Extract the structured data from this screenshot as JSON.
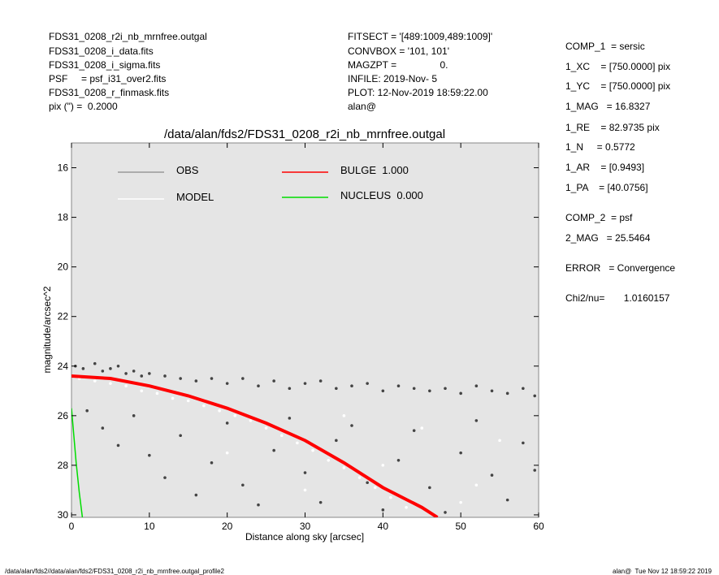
{
  "header": {
    "left": [
      "FDS31_0208_r2i_nb_mrnfree.outgal",
      "FDS31_0208_i_data.fits",
      "FDS31_0208_i_sigma.fits",
      "PSF     = psf_i31_over2.fits",
      "FDS31_0208_r_finmask.fits",
      "pix (\") =  0.2000"
    ],
    "middle": [
      "FITSECT = '[489:1009,489:1009]'",
      "CONVBOX = '101, 101'",
      "MAGZPT =                0.",
      "INFILE: 2019-Nov- 5",
      "PLOT: 12-Nov-2019 18:59:22.00",
      "alan@"
    ],
    "right": [
      "COMP_1  = sersic",
      "1_XC    = [750.0000] pix",
      "1_YC    = [750.0000] pix",
      "1_MAG   = 16.8327",
      "1_RE    = 82.9735 pix",
      "1_N     = 0.5772",
      "1_AR    = [0.9493]",
      "1_PA    = [40.0756]",
      "COMP_2  = psf",
      "2_MAG   = 25.5464",
      "ERROR   = Convergence",
      "Chi2/nu=       1.0160157"
    ]
  },
  "chart_data": {
    "type": "scatter",
    "title": "/data/alan/fds2/FDS31_0208_r2i_nb_mrnfree.outgal",
    "x_label": "Distance along sky [arcsec]",
    "y_label": "magnitude/arcsec^2",
    "xlim": [
      0,
      60
    ],
    "ylim": [
      30.1,
      15.0
    ],
    "xticks": [
      0,
      10,
      20,
      30,
      40,
      50,
      60
    ],
    "yticks": [
      16,
      18,
      20,
      22,
      24,
      26,
      28,
      30
    ],
    "series": [
      {
        "name": "OBS",
        "mode": "points",
        "color": "#444444",
        "legend_color": "#999999",
        "x": [
          0.5,
          1.5,
          3,
          4,
          5,
          6,
          7,
          8,
          9,
          10,
          12,
          14,
          16,
          18,
          20,
          22,
          24,
          26,
          28,
          30,
          32,
          34,
          36,
          38,
          40,
          42,
          44,
          46,
          48,
          50,
          52,
          54,
          56,
          58,
          59.5,
          2,
          4,
          6,
          8,
          10,
          12,
          14,
          16,
          18,
          20,
          22,
          24,
          26,
          28,
          30,
          32,
          34,
          36,
          38,
          40,
          42,
          44,
          46,
          48,
          50,
          52,
          54,
          56,
          58,
          59.5
        ],
        "values": [
          24.0,
          24.1,
          23.9,
          24.2,
          24.1,
          24.0,
          24.3,
          24.2,
          24.4,
          24.3,
          24.4,
          24.5,
          24.6,
          24.5,
          24.7,
          24.5,
          24.8,
          24.6,
          24.9,
          24.7,
          24.6,
          24.9,
          24.8,
          24.7,
          25.0,
          24.8,
          24.9,
          25.0,
          24.9,
          25.1,
          24.8,
          25.0,
          25.1,
          24.9,
          25.2,
          25.8,
          26.5,
          27.2,
          26.0,
          27.6,
          28.5,
          26.8,
          29.2,
          27.9,
          26.3,
          28.8,
          29.6,
          27.4,
          26.1,
          28.3,
          29.5,
          27.0,
          26.4,
          28.7,
          29.8,
          27.8,
          26.6,
          28.9,
          29.9,
          27.5,
          26.2,
          28.4,
          29.4,
          27.1,
          28.2
        ]
      },
      {
        "name": "MODEL",
        "mode": "points",
        "color": "#ffffff",
        "legend_color": "#ffffff",
        "x": [
          1,
          3,
          5,
          7,
          9,
          11,
          13,
          15,
          17,
          19,
          21,
          23,
          25,
          27,
          29,
          31,
          33,
          35,
          37,
          39,
          41,
          43,
          20,
          30,
          40,
          50,
          45,
          55,
          52,
          35
        ],
        "values": [
          24.5,
          24.6,
          24.7,
          24.8,
          25.0,
          25.1,
          25.3,
          25.4,
          25.6,
          25.8,
          26.0,
          26.2,
          26.5,
          26.8,
          27.1,
          27.4,
          27.8,
          28.1,
          28.5,
          28.9,
          29.3,
          29.7,
          27.5,
          29.0,
          28.0,
          29.5,
          26.5,
          27.0,
          28.8,
          26.0
        ]
      },
      {
        "name": "BULGE  1.000",
        "mode": "line",
        "color": "#ff0000",
        "legend_color": "#ff0000",
        "x": [
          0,
          5,
          10,
          15,
          20,
          25,
          30,
          35,
          40,
          45,
          47
        ],
        "values": [
          24.4,
          24.5,
          24.8,
          25.2,
          25.7,
          26.3,
          27.0,
          27.9,
          28.9,
          29.7,
          30.1
        ]
      },
      {
        "name": "NUCLEUS  0.000",
        "mode": "line",
        "color": "#00dd00",
        "legend_color": "#00dd00",
        "x": [
          0,
          0.3,
          0.6,
          1,
          1.4
        ],
        "values": [
          25.7,
          26.8,
          27.9,
          29.1,
          30.1
        ]
      }
    ]
  },
  "footer": {
    "left": "/data/alan/fds2//data/alan/fds2/FDS31_0208_r2i_nb_mrnfree.outgal_profile2",
    "right": "alan@  Tue Nov 12 18:59:22 2019"
  }
}
